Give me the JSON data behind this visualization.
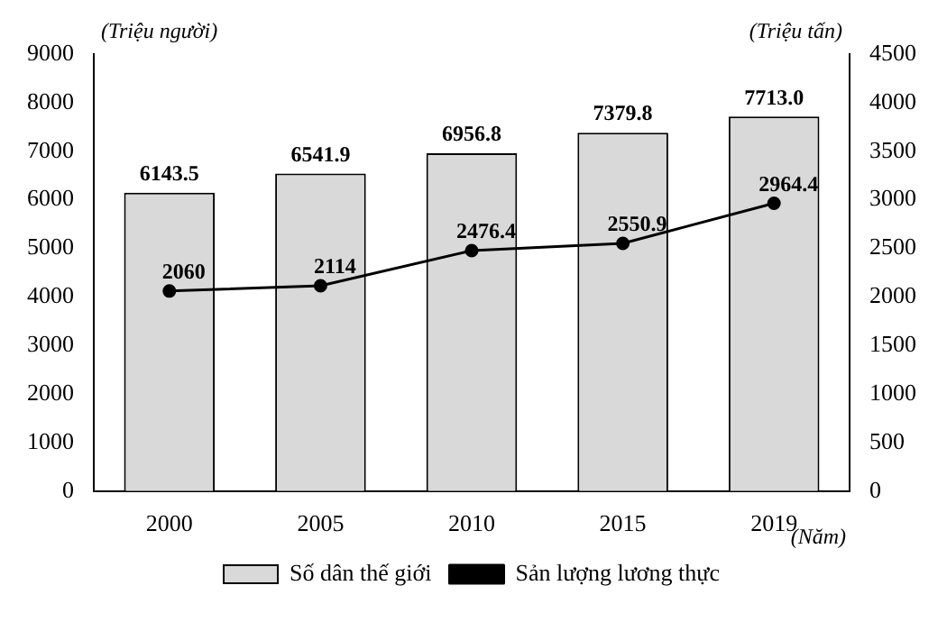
{
  "chart_data": {
    "type": "bar",
    "categories": [
      "2000",
      "2005",
      "2010",
      "2015",
      "2019"
    ],
    "ylabel": "(Triệu người)",
    "y2label": "(Triệu tấn)",
    "xlabel": "(Năm)",
    "ylim": [
      0,
      9000
    ],
    "yticks": [
      0,
      1000,
      2000,
      3000,
      4000,
      5000,
      6000,
      7000,
      8000,
      9000
    ],
    "y2lim": [
      0,
      4500
    ],
    "y2ticks": [
      0,
      500,
      1000,
      1500,
      2000,
      2500,
      3000,
      3500,
      4000,
      4500
    ],
    "grid": false,
    "legend": "bottom",
    "series": [
      {
        "name": "Số dân thế giới",
        "color": "#d9d9d9",
        "values": [
          6143.5,
          6541.9,
          6956.8,
          7379.8,
          7713.0
        ],
        "value_labels": [
          "6143.5",
          "6541.9",
          "6956.8",
          "7379.8",
          "7713.0"
        ]
      },
      {
        "name": "Sản lượng lương thực",
        "type": "line",
        "axis": "y2",
        "color": "#000000",
        "marker": "circle",
        "values": [
          2060,
          2114,
          2476.4,
          2550.9,
          2964.4
        ],
        "value_labels": [
          "2060",
          "2114",
          "2476.4",
          "2550.9",
          "2964.4"
        ]
      }
    ]
  }
}
